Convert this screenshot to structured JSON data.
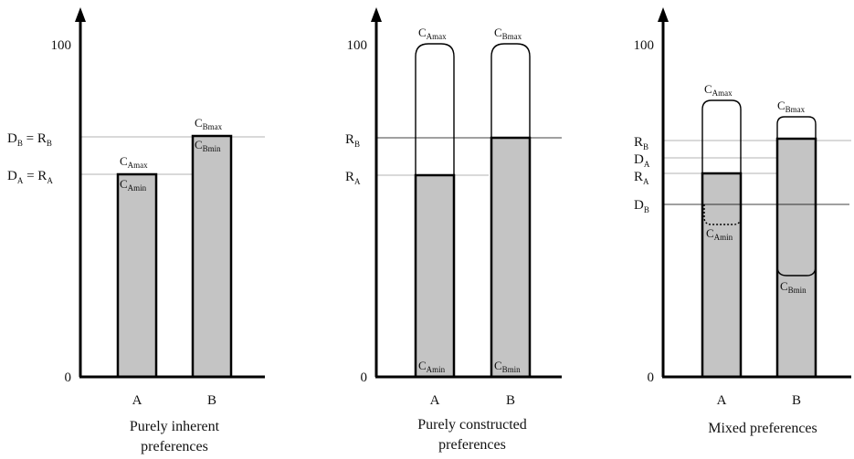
{
  "panels": [
    {
      "id": "inherent",
      "caption_line1": "Purely inherent",
      "caption_line2": "preferences",
      "y_top_tick": "100",
      "y_zero_tick": "0",
      "categories": [
        "A",
        "B"
      ],
      "y_labels": [
        {
          "main": "D",
          "sub": "B",
          "mid": " = R",
          "sub2": "B"
        },
        {
          "main": "D",
          "sub": "A",
          "mid": " = R",
          "sub2": "A"
        }
      ],
      "c_labels": [
        {
          "main": "C",
          "sub": "Amax"
        },
        {
          "main": "C",
          "sub": "Amin"
        },
        {
          "main": "C",
          "sub": "Bmax"
        },
        {
          "main": "C",
          "sub": "Bmin"
        }
      ]
    },
    {
      "id": "constructed",
      "caption_line1": "Purely constructed",
      "caption_line2": "preferences",
      "y_top_tick": "100",
      "y_zero_tick": "0",
      "categories": [
        "A",
        "B"
      ],
      "y_labels": [
        {
          "main": "R",
          "sub": "B"
        },
        {
          "main": "R",
          "sub": "A"
        }
      ],
      "c_labels": [
        {
          "main": "C",
          "sub": "Amax"
        },
        {
          "main": "C",
          "sub": "Bmax"
        },
        {
          "main": "C",
          "sub": "Amin"
        },
        {
          "main": "C",
          "sub": "Bmin"
        }
      ]
    },
    {
      "id": "mixed",
      "caption_line1": "Mixed preferences",
      "caption_line2": "",
      "y_top_tick": "100",
      "y_zero_tick": "0",
      "categories": [
        "A",
        "B"
      ],
      "y_labels": [
        {
          "main": "R",
          "sub": "B"
        },
        {
          "main": "D",
          "sub": "A"
        },
        {
          "main": "R",
          "sub": "A"
        },
        {
          "main": "D",
          "sub": "B"
        }
      ],
      "c_labels": [
        {
          "main": "C",
          "sub": "Amax"
        },
        {
          "main": "C",
          "sub": "Bmax"
        },
        {
          "main": "C",
          "sub": "Amin"
        },
        {
          "main": "C",
          "sub": "Bmin"
        }
      ]
    }
  ]
}
